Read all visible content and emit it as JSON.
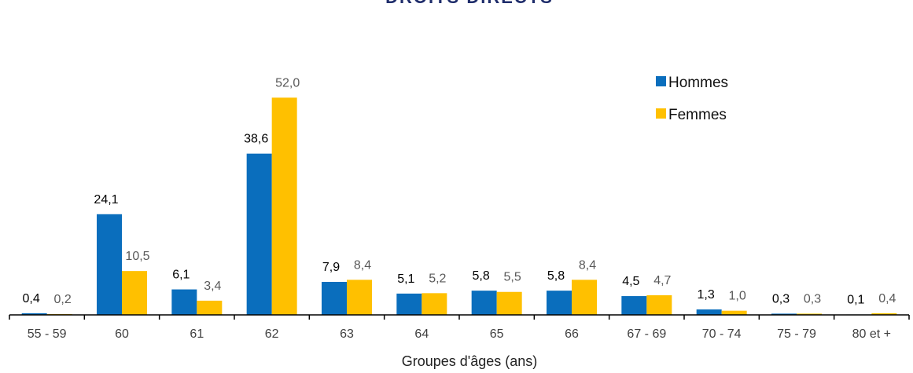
{
  "chart_data": {
    "type": "bar",
    "title": "DROITS DIRECTS",
    "xlabel": "Groupes d'âges (ans)",
    "ylabel": "",
    "ylim": [
      0,
      54
    ],
    "grid": false,
    "legend_position": "top-right",
    "categories": [
      "55 - 59",
      "60",
      "61",
      "62",
      "63",
      "64",
      "65",
      "66",
      "67 - 69",
      "70 - 74",
      "75 - 79",
      "80 et +"
    ],
    "series": [
      {
        "name": "Hommes",
        "color": "#0A6EBD",
        "label_color": "#000000",
        "values": [
          0.4,
          24.1,
          6.1,
          38.6,
          7.9,
          5.1,
          5.8,
          5.8,
          4.5,
          1.3,
          0.3,
          0.1
        ],
        "labels": [
          "0,4",
          "24,1",
          "6,1",
          "38,6",
          "7,9",
          "5,1",
          "5,8",
          "5,8",
          "4,5",
          "1,3",
          "0,3",
          "0,1"
        ]
      },
      {
        "name": "Femmes",
        "color": "#FFC000",
        "label_color": "#595959",
        "values": [
          0.2,
          10.5,
          3.4,
          52.0,
          8.4,
          5.2,
          5.5,
          8.4,
          4.7,
          1.0,
          0.3,
          0.4
        ],
        "labels": [
          "0,2",
          "10,5",
          "3,4",
          "52,0",
          "8,4",
          "5,2",
          "5,5",
          "8,4",
          "4,7",
          "1,0",
          "0,3",
          "0,4"
        ]
      }
    ],
    "title_color": "#1F2D6B"
  }
}
